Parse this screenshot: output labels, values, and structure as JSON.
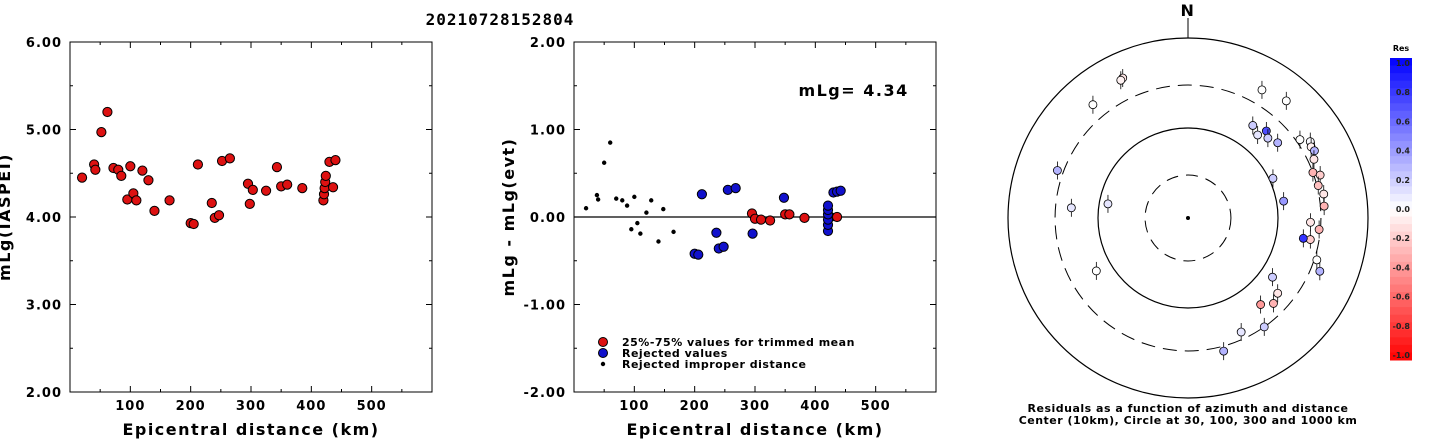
{
  "title": "20210728152804",
  "chart_data": [
    {
      "type": "scatter",
      "xlabel": "Epicentral distance (km)",
      "ylabel": "mLg(IASPEI)",
      "xlim": [
        0,
        600
      ],
      "ylim": [
        2.0,
        6.0
      ],
      "x_ticks": [
        "100",
        "200",
        "300",
        "400",
        "500"
      ],
      "y_ticks": [
        "2.00",
        "3.00",
        "4.00",
        "5.00",
        "6.00"
      ],
      "series": [
        {
          "color": "#dd1111",
          "points": [
            [
              20,
              4.45
            ],
            [
              40,
              4.6
            ],
            [
              42,
              4.54
            ],
            [
              52,
              4.97
            ],
            [
              62,
              5.2
            ],
            [
              72,
              4.56
            ],
            [
              80,
              4.54
            ],
            [
              85,
              4.47
            ],
            [
              95,
              4.2
            ],
            [
              100,
              4.58
            ],
            [
              105,
              4.27
            ],
            [
              110,
              4.19
            ],
            [
              120,
              4.53
            ],
            [
              130,
              4.42
            ],
            [
              140,
              4.07
            ],
            [
              165,
              4.19
            ],
            [
              200,
              3.93
            ],
            [
              205,
              3.92
            ],
            [
              212,
              4.6
            ],
            [
              235,
              4.16
            ],
            [
              240,
              3.99
            ],
            [
              247,
              4.02
            ],
            [
              252,
              4.64
            ],
            [
              265,
              4.67
            ],
            [
              295,
              4.38
            ],
            [
              298,
              4.15
            ],
            [
              303,
              4.31
            ],
            [
              325,
              4.3
            ],
            [
              343,
              4.57
            ],
            [
              350,
              4.35
            ],
            [
              360,
              4.37
            ],
            [
              385,
              4.33
            ],
            [
              420,
              4.19
            ],
            [
              421,
              4.26
            ],
            [
              422,
              4.33
            ],
            [
              423,
              4.4
            ],
            [
              424,
              4.47
            ],
            [
              430,
              4.63
            ],
            [
              436,
              4.34
            ],
            [
              440,
              4.65
            ]
          ]
        }
      ]
    },
    {
      "type": "scatter",
      "xlabel": "Epicentral distance (km)",
      "ylabel": "mLg - mLg(evt)",
      "xlim": [
        0,
        600
      ],
      "ylim": [
        -2.0,
        2.0
      ],
      "x_ticks": [
        "100",
        "200",
        "300",
        "400",
        "500"
      ],
      "y_ticks": [
        "-2.00",
        "-1.00",
        "0.00",
        "1.00",
        "2.00"
      ],
      "annotation": "mLg= 4.34",
      "legend": [
        {
          "label": "25%-75% values for trimmed mean",
          "color": "#dd1111"
        },
        {
          "label": "Rejected values",
          "color": "#1111cc"
        },
        {
          "label": "Rejected improper distance",
          "color": "#000000"
        }
      ],
      "series": [
        {
          "name": "25%-75% values for trimmed mean",
          "color": "#dd1111",
          "points": [
            [
              295,
              0.04
            ],
            [
              300,
              -0.02
            ],
            [
              310,
              -0.03
            ],
            [
              325,
              -0.04
            ],
            [
              350,
              0.03
            ],
            [
              357,
              0.03
            ],
            [
              382,
              -0.01
            ],
            [
              425,
              0.0
            ],
            [
              436,
              0.0
            ]
          ]
        },
        {
          "name": "Rejected values",
          "color": "#1111cc",
          "points": [
            [
              200,
              -0.42
            ],
            [
              206,
              -0.43
            ],
            [
              212,
              0.26
            ],
            [
              236,
              -0.18
            ],
            [
              240,
              -0.36
            ],
            [
              248,
              -0.34
            ],
            [
              255,
              0.31
            ],
            [
              268,
              0.33
            ],
            [
              296,
              -0.19
            ],
            [
              348,
              0.22
            ],
            [
              421,
              -0.16
            ],
            [
              421,
              -0.09
            ],
            [
              421,
              -0.03
            ],
            [
              421,
              0.03
            ],
            [
              421,
              0.08
            ],
            [
              421,
              0.13
            ],
            [
              430,
              0.28
            ],
            [
              436,
              0.29
            ],
            [
              442,
              0.3
            ]
          ]
        },
        {
          "name": "Rejected improper distance",
          "color": "#000000",
          "points": [
            [
              20,
              0.1
            ],
            [
              38,
              0.25
            ],
            [
              40,
              0.2
            ],
            [
              50,
              0.62
            ],
            [
              60,
              0.85
            ],
            [
              70,
              0.21
            ],
            [
              80,
              0.19
            ],
            [
              88,
              0.13
            ],
            [
              95,
              -0.14
            ],
            [
              100,
              0.23
            ],
            [
              105,
              -0.07
            ],
            [
              110,
              -0.19
            ],
            [
              120,
              0.05
            ],
            [
              128,
              0.19
            ],
            [
              140,
              -0.28
            ],
            [
              148,
              0.09
            ],
            [
              165,
              -0.17
            ]
          ]
        }
      ]
    },
    {
      "type": "scatter",
      "subtype": "polar",
      "north_label": "N",
      "caption": [
        "Residuals as a function of azimuth and distance",
        "Center (10km), Circle at 30, 100, 300 and 1000 km"
      ],
      "rings_km": [
        30,
        100,
        300,
        1000
      ],
      "colorbar": {
        "title": "Res",
        "ticks": [
          "1.0",
          "0.8",
          "0.6",
          "0.4",
          "0.2",
          "0.0",
          "-0.2",
          "-0.4",
          "-0.6",
          "-0.8",
          "-1.0"
        ],
        "range": [
          -1.0,
          1.0
        ]
      },
      "points": [
        {
          "az": 335,
          "dist_km": 520,
          "res": -0.1
        },
        {
          "az": 334,
          "dist_km": 505,
          "res": -0.05
        },
        {
          "az": 320,
          "dist_km": 440,
          "res": 0.0
        },
        {
          "az": 30,
          "dist_km": 440,
          "res": 0.0
        },
        {
          "az": 40,
          "dist_km": 500,
          "res": 0.0
        },
        {
          "az": 55,
          "dist_km": 330,
          "res": 0.0
        },
        {
          "az": 58,
          "dist_km": 400,
          "res": 0.02
        },
        {
          "az": 60,
          "dist_km": 380,
          "res": -0.05
        },
        {
          "az": 62,
          "dist_km": 390,
          "res": 0.3
        },
        {
          "az": 65,
          "dist_km": 350,
          "res": -0.1
        },
        {
          "az": 70,
          "dist_km": 300,
          "res": -0.3
        },
        {
          "az": 72,
          "dist_km": 350,
          "res": -0.2
        },
        {
          "az": 76,
          "dist_km": 310,
          "res": -0.25
        },
        {
          "az": 80,
          "dist_km": 340,
          "res": -0.1
        },
        {
          "az": 85,
          "dist_km": 330,
          "res": -0.3
        },
        {
          "az": 92,
          "dist_km": 230,
          "res": -0.1
        },
        {
          "az": 95,
          "dist_km": 290,
          "res": -0.3
        },
        {
          "az": 100,
          "dist_km": 240,
          "res": -0.2
        },
        {
          "az": 108,
          "dist_km": 320,
          "res": 0.0
        },
        {
          "az": 112,
          "dist_km": 380,
          "res": 0.3
        },
        {
          "az": 35,
          "dist_km": 180,
          "res": 0.2
        },
        {
          "az": 40,
          "dist_km": 160,
          "res": 0.1
        },
        {
          "az": 42,
          "dist_km": 200,
          "res": 0.7
        },
        {
          "az": 45,
          "dist_km": 180,
          "res": 0.2
        },
        {
          "az": 50,
          "dist_km": 200,
          "res": 0.3
        },
        {
          "az": 65,
          "dist_km": 110,
          "res": 0.2
        },
        {
          "az": 80,
          "dist_km": 120,
          "res": 0.4
        },
        {
          "az": 100,
          "dist_km": 200,
          "res": 0.8
        },
        {
          "az": 125,
          "dist_km": 140,
          "res": 0.2
        },
        {
          "az": 130,
          "dist_km": 200,
          "res": -0.1
        },
        {
          "az": 135,
          "dist_km": 220,
          "res": -0.3
        },
        {
          "az": 140,
          "dist_km": 180,
          "res": -0.4
        },
        {
          "az": 145,
          "dist_km": 300,
          "res": 0.2
        },
        {
          "az": 155,
          "dist_km": 250,
          "res": 0.1
        },
        {
          "az": 165,
          "dist_km": 340,
          "res": 0.3
        },
        {
          "az": 280,
          "dist_km": 80,
          "res": 0.1
        },
        {
          "az": 275,
          "dist_km": 200,
          "res": 0.1
        },
        {
          "az": 240,
          "dist_km": 150,
          "res": 0.0
        },
        {
          "az": 290,
          "dist_km": 350,
          "res": 0.3
        }
      ]
    }
  ]
}
